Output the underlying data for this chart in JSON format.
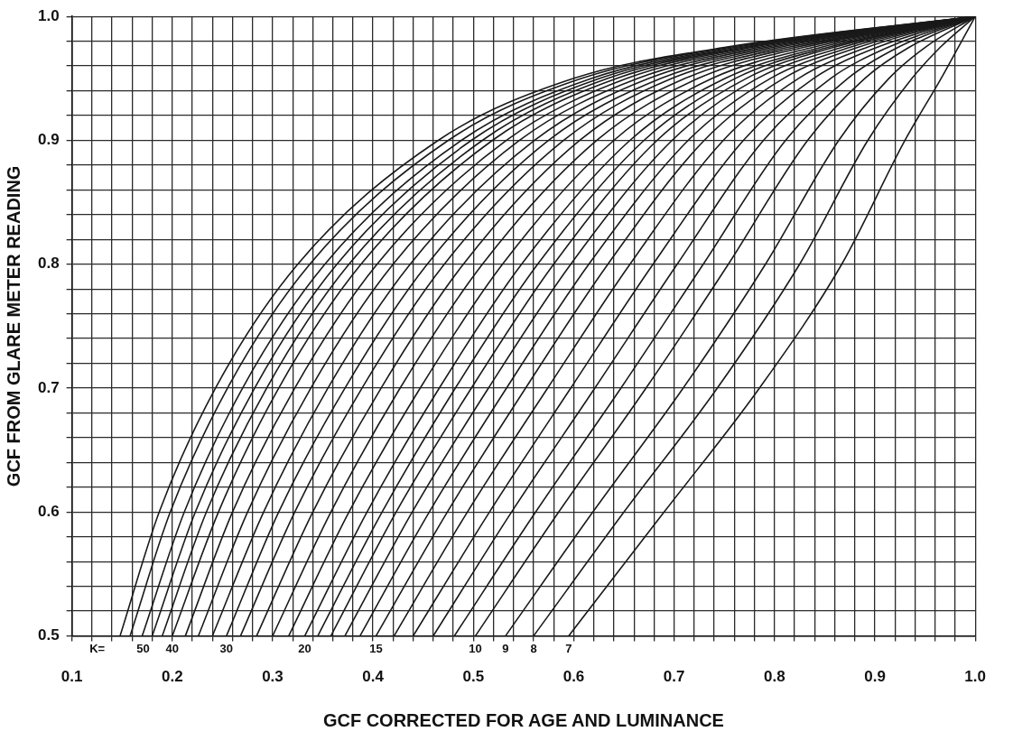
{
  "chart_data": {
    "type": "line",
    "xlabel": "GCF CORRECTED FOR AGE AND LUMINANCE",
    "ylabel": "GCF FROM GLARE METER READING",
    "xlim": [
      0.1,
      1.0
    ],
    "ylim": [
      0.5,
      1.0
    ],
    "xticks": [
      0.1,
      {
        "value": 0.12,
        "label": null
      },
      {
        "value": 0.14,
        "label": null
      },
      {
        "value": 0.16,
        "label": null
      },
      {
        "value": 0.18,
        "label": null
      },
      0.2,
      {
        "value": 0.22,
        "label": null
      },
      {
        "value": 0.24,
        "label": null
      },
      {
        "value": 0.26,
        "label": null
      },
      {
        "value": 0.28,
        "label": null
      },
      0.3,
      {
        "value": 0.32,
        "label": null
      },
      {
        "value": 0.34,
        "label": null
      },
      {
        "value": 0.36,
        "label": null
      },
      {
        "value": 0.38,
        "label": null
      },
      0.4,
      {
        "value": 0.42,
        "label": null
      },
      {
        "value": 0.44,
        "label": null
      },
      {
        "value": 0.46,
        "label": null
      },
      {
        "value": 0.48,
        "label": null
      },
      0.5,
      {
        "value": 0.52,
        "label": null
      },
      {
        "value": 0.54,
        "label": null
      },
      {
        "value": 0.56,
        "label": null
      },
      {
        "value": 0.58,
        "label": null
      },
      0.6,
      {
        "value": 0.62,
        "label": null
      },
      {
        "value": 0.64,
        "label": null
      },
      {
        "value": 0.66,
        "label": null
      },
      {
        "value": 0.68,
        "label": null
      },
      0.7,
      {
        "value": 0.72,
        "label": null
      },
      {
        "value": 0.74,
        "label": null
      },
      {
        "value": 0.76,
        "label": null
      },
      {
        "value": 0.78,
        "label": null
      },
      0.8,
      {
        "value": 0.82,
        "label": null
      },
      {
        "value": 0.84,
        "label": null
      },
      {
        "value": 0.86,
        "label": null
      },
      {
        "value": 0.88,
        "label": null
      },
      0.9,
      {
        "value": 0.92,
        "label": null
      },
      {
        "value": 0.94,
        "label": null
      },
      {
        "value": 0.96,
        "label": null
      },
      {
        "value": 0.98,
        "label": null
      },
      {
        "value": 1.0,
        "label": "1.0"
      }
    ],
    "yticks": [
      0.5,
      {
        "value": 0.52,
        "label": null
      },
      {
        "value": 0.54,
        "label": null
      },
      {
        "value": 0.56,
        "label": null
      },
      {
        "value": 0.58,
        "label": null
      },
      0.6,
      {
        "value": 0.62,
        "label": null
      },
      {
        "value": 0.64,
        "label": null
      },
      {
        "value": 0.66,
        "label": null
      },
      {
        "value": 0.68,
        "label": null
      },
      0.7,
      {
        "value": 0.72,
        "label": null
      },
      {
        "value": 0.74,
        "label": null
      },
      {
        "value": 0.76,
        "label": null
      },
      {
        "value": 0.78,
        "label": null
      },
      0.8,
      {
        "value": 0.82,
        "label": null
      },
      {
        "value": 0.84,
        "label": null
      },
      {
        "value": 0.86,
        "label": null
      },
      {
        "value": 0.88,
        "label": null
      },
      0.9,
      {
        "value": 0.92,
        "label": null
      },
      {
        "value": 0.94,
        "label": null
      },
      {
        "value": 0.96,
        "label": null
      },
      {
        "value": 0.98,
        "label": null
      },
      {
        "value": 1.0,
        "label": "1.0"
      }
    ],
    "grid": true,
    "legend": false,
    "marker": "none",
    "line_style": "solid",
    "annotations": [
      "K=",
      {
        "text": "50",
        "x": 0.171,
        "y": 0.5
      },
      {
        "text": "40",
        "x": 0.2,
        "y": 0.5
      },
      {
        "text": "30",
        "x": 0.254,
        "y": 0.5
      },
      {
        "text": "20",
        "x": 0.332,
        "y": 0.5
      },
      {
        "text": "15",
        "x": 0.403,
        "y": 0.5
      },
      {
        "text": "10",
        "x": 0.502,
        "y": 0.5
      },
      {
        "text": "9",
        "x": 0.532,
        "y": 0.5
      },
      {
        "text": "8",
        "x": 0.56,
        "y": 0.5
      },
      {
        "text": "7",
        "x": 0.595,
        "y": 0.5
      }
    ],
    "series": [
      {
        "color": "#1a1a1a",
        "x": [
          0.148,
          0.187,
          0.243,
          0.325,
          0.465,
          0.6,
          0.75,
          1.0
        ],
        "values": [
          0.5,
          0.6,
          0.7,
          0.8,
          0.9,
          0.95,
          0.975,
          1.0
        ]
      },
      {
        "color": "#1a1a1a",
        "x": [
          0.158,
          0.198,
          0.255,
          0.337,
          0.475,
          0.608,
          0.755,
          1.0
        ],
        "values": [
          0.5,
          0.6,
          0.7,
          0.8,
          0.9,
          0.95,
          0.975,
          1.0
        ]
      },
      {
        "color": "#1a1a1a",
        "x": [
          0.17,
          0.212,
          0.27,
          0.352,
          0.488,
          0.618,
          0.761,
          1.0
        ],
        "values": [
          0.5,
          0.6,
          0.7,
          0.8,
          0.9,
          0.95,
          0.975,
          1.0
        ]
      },
      {
        "color": "#1a1a1a",
        "x": [
          0.18,
          0.223,
          0.282,
          0.364,
          0.498,
          0.626,
          0.767,
          1.0
        ],
        "values": [
          0.5,
          0.6,
          0.7,
          0.8,
          0.9,
          0.95,
          0.975,
          1.0
        ]
      },
      {
        "color": "#1a1a1a",
        "x": [
          0.19,
          0.234,
          0.294,
          0.376,
          0.509,
          0.634,
          0.772,
          1.0
        ],
        "values": [
          0.5,
          0.6,
          0.7,
          0.8,
          0.9,
          0.95,
          0.975,
          1.0
        ]
      },
      {
        "color": "#1a1a1a",
        "x": [
          0.2,
          0.246,
          0.306,
          0.388,
          0.519,
          0.643,
          0.777,
          1.0
        ],
        "values": [
          0.5,
          0.6,
          0.7,
          0.8,
          0.9,
          0.95,
          0.975,
          1.0
        ]
      },
      {
        "color": "#1a1a1a",
        "x": [
          0.213,
          0.26,
          0.322,
          0.404,
          0.533,
          0.653,
          0.784,
          1.0
        ],
        "values": [
          0.5,
          0.6,
          0.7,
          0.8,
          0.9,
          0.95,
          0.975,
          1.0
        ]
      },
      {
        "color": "#1a1a1a",
        "x": [
          0.226,
          0.275,
          0.338,
          0.42,
          0.546,
          0.664,
          0.791,
          1.0
        ],
        "values": [
          0.5,
          0.6,
          0.7,
          0.8,
          0.9,
          0.95,
          0.975,
          1.0
        ]
      },
      {
        "color": "#1a1a1a",
        "x": [
          0.24,
          0.291,
          0.355,
          0.437,
          0.561,
          0.675,
          0.798,
          1.0
        ],
        "values": [
          0.5,
          0.6,
          0.7,
          0.8,
          0.9,
          0.95,
          0.975,
          1.0
        ]
      },
      {
        "color": "#1a1a1a",
        "x": [
          0.254,
          0.306,
          0.372,
          0.454,
          0.575,
          0.687,
          0.805,
          1.0
        ],
        "values": [
          0.5,
          0.6,
          0.7,
          0.8,
          0.9,
          0.95,
          0.975,
          1.0
        ]
      },
      {
        "color": "#1a1a1a",
        "x": [
          0.268,
          0.322,
          0.389,
          0.471,
          0.59,
          0.698,
          0.813,
          1.0
        ],
        "values": [
          0.5,
          0.6,
          0.7,
          0.8,
          0.9,
          0.95,
          0.975,
          1.0
        ]
      },
      {
        "color": "#1a1a1a",
        "x": [
          0.284,
          0.34,
          0.408,
          0.49,
          0.606,
          0.711,
          0.821,
          1.0
        ],
        "values": [
          0.5,
          0.6,
          0.7,
          0.8,
          0.9,
          0.95,
          0.975,
          1.0
        ]
      },
      {
        "color": "#1a1a1a",
        "x": [
          0.3,
          0.358,
          0.427,
          0.509,
          0.623,
          0.724,
          0.829,
          1.0
        ],
        "values": [
          0.5,
          0.6,
          0.7,
          0.8,
          0.9,
          0.95,
          0.975,
          1.0
        ]
      },
      {
        "color": "#1a1a1a",
        "x": [
          0.316,
          0.376,
          0.447,
          0.529,
          0.64,
          0.738,
          0.838,
          1.0
        ],
        "values": [
          0.5,
          0.6,
          0.7,
          0.8,
          0.9,
          0.95,
          0.975,
          1.0
        ]
      },
      {
        "color": "#1a1a1a",
        "x": [
          0.332,
          0.394,
          0.466,
          0.548,
          0.656,
          0.751,
          0.846,
          1.0
        ],
        "values": [
          0.5,
          0.6,
          0.7,
          0.8,
          0.9,
          0.95,
          0.975,
          1.0
        ]
      },
      {
        "color": "#1a1a1a",
        "x": [
          0.345,
          0.409,
          0.482,
          0.564,
          0.67,
          0.761,
          0.853,
          1.0
        ],
        "values": [
          0.5,
          0.6,
          0.7,
          0.8,
          0.9,
          0.95,
          0.975,
          1.0
        ]
      },
      {
        "color": "#1a1a1a",
        "x": [
          0.358,
          0.423,
          0.498,
          0.58,
          0.683,
          0.772,
          0.859,
          1.0
        ],
        "values": [
          0.5,
          0.6,
          0.7,
          0.8,
          0.9,
          0.95,
          0.975,
          1.0
        ]
      },
      {
        "color": "#1a1a1a",
        "x": [
          0.372,
          0.439,
          0.515,
          0.597,
          0.698,
          0.783,
          0.867,
          1.0
        ],
        "values": [
          0.5,
          0.6,
          0.7,
          0.8,
          0.9,
          0.95,
          0.975,
          1.0
        ]
      },
      {
        "color": "#1a1a1a",
        "x": [
          0.387,
          0.456,
          0.533,
          0.615,
          0.714,
          0.796,
          0.875,
          1.0
        ],
        "values": [
          0.5,
          0.6,
          0.7,
          0.8,
          0.9,
          0.95,
          0.975,
          1.0
        ]
      },
      {
        "color": "#1a1a1a",
        "x": [
          0.403,
          0.474,
          0.552,
          0.634,
          0.73,
          0.809,
          0.883,
          1.0
        ],
        "values": [
          0.5,
          0.6,
          0.7,
          0.8,
          0.9,
          0.95,
          0.975,
          1.0
        ]
      },
      {
        "color": "#1a1a1a",
        "x": [
          0.421,
          0.494,
          0.574,
          0.656,
          0.749,
          0.824,
          0.892,
          1.0
        ],
        "values": [
          0.5,
          0.6,
          0.7,
          0.8,
          0.9,
          0.95,
          0.975,
          1.0
        ]
      },
      {
        "color": "#1a1a1a",
        "x": [
          0.44,
          0.516,
          0.597,
          0.679,
          0.769,
          0.839,
          0.902,
          1.0
        ],
        "values": [
          0.5,
          0.6,
          0.7,
          0.8,
          0.9,
          0.95,
          0.975,
          1.0
        ]
      },
      {
        "color": "#1a1a1a",
        "x": [
          0.46,
          0.538,
          0.621,
          0.703,
          0.789,
          0.856,
          0.913,
          1.0
        ],
        "values": [
          0.5,
          0.6,
          0.7,
          0.8,
          0.9,
          0.95,
          0.975,
          1.0
        ]
      },
      {
        "color": "#1a1a1a",
        "x": [
          0.481,
          0.562,
          0.647,
          0.729,
          0.811,
          0.873,
          0.923,
          1.0
        ],
        "values": [
          0.5,
          0.6,
          0.7,
          0.8,
          0.9,
          0.95,
          0.975,
          1.0
        ]
      },
      {
        "color": "#1a1a1a",
        "x": [
          0.502,
          0.585,
          0.672,
          0.754,
          0.833,
          0.89,
          0.934,
          1.0
        ],
        "values": [
          0.5,
          0.6,
          0.7,
          0.8,
          0.9,
          0.95,
          0.975,
          1.0
        ]
      },
      {
        "color": "#1a1a1a",
        "x": [
          0.532,
          0.619,
          0.709,
          0.791,
          0.864,
          0.914,
          0.95,
          1.0
        ],
        "values": [
          0.5,
          0.6,
          0.7,
          0.8,
          0.9,
          0.95,
          0.975,
          1.0
        ]
      },
      {
        "color": "#1a1a1a",
        "x": [
          0.56,
          0.65,
          0.743,
          0.825,
          0.893,
          0.937,
          0.965,
          1.0
        ],
        "values": [
          0.5,
          0.6,
          0.7,
          0.8,
          0.9,
          0.95,
          0.975,
          1.0
        ]
      },
      {
        "color": "#1a1a1a",
        "x": [
          0.595,
          0.69,
          0.785,
          0.867,
          0.93,
          0.966,
          0.983,
          1.0
        ],
        "values": [
          0.5,
          0.6,
          0.7,
          0.8,
          0.9,
          0.95,
          0.975,
          1.0
        ]
      }
    ]
  }
}
